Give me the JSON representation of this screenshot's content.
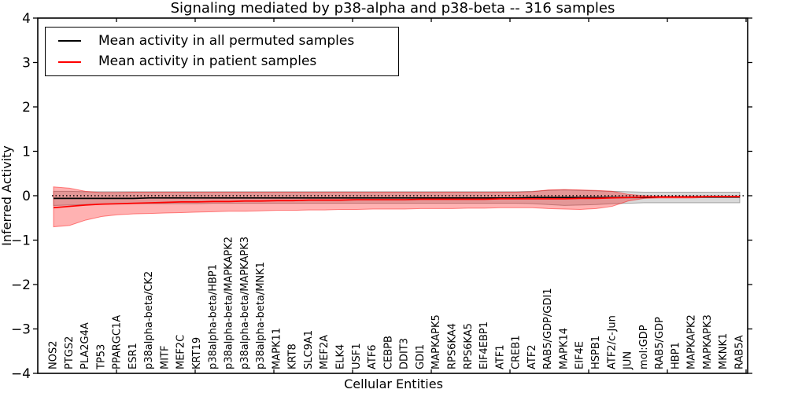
{
  "chart_data": {
    "type": "line",
    "title": "Signaling mediated by p38-alpha and p38-beta -- 316 samples",
    "xlabel": "Cellular Entities",
    "ylabel": "Inferred Activity",
    "ylim": [
      -4,
      4
    ],
    "yticks": [
      4,
      3,
      2,
      1,
      0,
      -1,
      -2,
      -3,
      -4
    ],
    "ytick_labels": [
      "4",
      "3",
      "2",
      "1",
      "0",
      "−1",
      "−2",
      "−3",
      "−4"
    ],
    "grid": false,
    "legend_position": "upper left",
    "zero_line": {
      "y": 0,
      "style": "dotted",
      "color": "#000000"
    },
    "categories": [
      "NOS2",
      "PTGS2",
      "PLA2G4A",
      "TP53",
      "PPARGC1A",
      "ESR1",
      "p38alpha-beta/CK2",
      "MITF",
      "MEF2C",
      "KRT19",
      "p38alpha-beta/HBP1",
      "p38alpha-beta/MAPKAPK2",
      "p38alpha-beta/MAPKAPK3",
      "p38alpha-beta/MNK1",
      "MAPK11",
      "KRT8",
      "SLC9A1",
      "MEF2A",
      "ELK4",
      "USF1",
      "ATF6",
      "CEBPB",
      "DDIT3",
      "GDI1",
      "MAPKAPK5",
      "RPS6KA4",
      "RPS6KA5",
      "EIF4EBP1",
      "ATF1",
      "CREB1",
      "ATF2",
      "RAB5/GDP/GDI1",
      "MAPK14",
      "EIF4E",
      "HSPB1",
      "ATF2/c-Jun",
      "JUN",
      "mol:GDP",
      "RAB5/GDP",
      "HBP1",
      "MAPKAPK2",
      "MAPKAPK3",
      "MKNK1",
      "RAB5A"
    ],
    "series": [
      {
        "name": "Mean activity in all permuted samples",
        "color": "#000000",
        "values": [
          -0.06,
          -0.06,
          -0.06,
          -0.06,
          -0.06,
          -0.06,
          -0.05,
          -0.05,
          -0.05,
          -0.05,
          -0.05,
          -0.05,
          -0.05,
          -0.05,
          -0.05,
          -0.05,
          -0.05,
          -0.05,
          -0.05,
          -0.05,
          -0.05,
          -0.05,
          -0.05,
          -0.05,
          -0.05,
          -0.05,
          -0.05,
          -0.05,
          -0.05,
          -0.05,
          -0.04,
          -0.04,
          -0.04,
          -0.04,
          -0.04,
          -0.04,
          -0.04,
          -0.04,
          -0.03,
          -0.03,
          -0.03,
          -0.03,
          -0.03,
          -0.03
        ]
      },
      {
        "name": "Mean activity in patient samples",
        "color": "#ff0000",
        "values": [
          -0.27,
          -0.24,
          -0.21,
          -0.19,
          -0.18,
          -0.17,
          -0.16,
          -0.15,
          -0.14,
          -0.14,
          -0.13,
          -0.13,
          -0.12,
          -0.12,
          -0.11,
          -0.11,
          -0.1,
          -0.1,
          -0.1,
          -0.09,
          -0.09,
          -0.09,
          -0.09,
          -0.08,
          -0.08,
          -0.08,
          -0.08,
          -0.08,
          -0.07,
          -0.07,
          -0.07,
          -0.07,
          -0.07,
          -0.06,
          -0.06,
          -0.05,
          -0.04,
          -0.03,
          -0.03,
          -0.03,
          -0.03,
          -0.02,
          -0.02,
          -0.02
        ]
      }
    ],
    "bands": [
      {
        "name": "permuted samples spread",
        "color": "#000000",
        "opacity": 0.15,
        "upper": [
          0.1,
          0.1,
          0.09,
          0.09,
          0.09,
          0.09,
          0.09,
          0.09,
          0.09,
          0.09,
          0.09,
          0.09,
          0.09,
          0.09,
          0.09,
          0.09,
          0.09,
          0.09,
          0.09,
          0.09,
          0.09,
          0.09,
          0.09,
          0.09,
          0.09,
          0.09,
          0.09,
          0.09,
          0.09,
          0.09,
          0.1,
          0.12,
          0.13,
          0.12,
          0.11,
          0.1,
          0.09,
          0.08,
          0.08,
          0.08,
          0.08,
          0.08,
          0.08,
          0.08
        ],
        "lower": [
          -0.22,
          -0.21,
          -0.2,
          -0.19,
          -0.19,
          -0.18,
          -0.18,
          -0.18,
          -0.18,
          -0.18,
          -0.17,
          -0.17,
          -0.17,
          -0.17,
          -0.17,
          -0.17,
          -0.17,
          -0.17,
          -0.17,
          -0.17,
          -0.17,
          -0.17,
          -0.17,
          -0.17,
          -0.17,
          -0.17,
          -0.17,
          -0.17,
          -0.17,
          -0.17,
          -0.18,
          -0.2,
          -0.22,
          -0.21,
          -0.2,
          -0.18,
          -0.17,
          -0.16,
          -0.16,
          -0.16,
          -0.16,
          -0.16,
          -0.16,
          -0.16
        ]
      },
      {
        "name": "patient samples spread",
        "color": "#ff0000",
        "opacity": 0.3,
        "upper": [
          0.2,
          0.17,
          0.1,
          0.07,
          0.07,
          0.08,
          0.08,
          0.08,
          0.08,
          0.08,
          0.08,
          0.08,
          0.08,
          0.08,
          0.08,
          0.08,
          0.08,
          0.08,
          0.08,
          0.08,
          0.08,
          0.08,
          0.08,
          0.08,
          0.08,
          0.08,
          0.08,
          0.08,
          0.08,
          0.08,
          0.09,
          0.13,
          0.14,
          0.13,
          0.12,
          0.1,
          0.03,
          0.0,
          -0.01,
          -0.01,
          -0.01,
          -0.01,
          -0.01,
          -0.01
        ],
        "lower": [
          -0.7,
          -0.67,
          -0.55,
          -0.47,
          -0.43,
          -0.41,
          -0.4,
          -0.39,
          -0.38,
          -0.37,
          -0.36,
          -0.35,
          -0.35,
          -0.34,
          -0.33,
          -0.33,
          -0.32,
          -0.32,
          -0.31,
          -0.31,
          -0.3,
          -0.3,
          -0.3,
          -0.29,
          -0.29,
          -0.29,
          -0.28,
          -0.28,
          -0.27,
          -0.27,
          -0.27,
          -0.29,
          -0.3,
          -0.31,
          -0.29,
          -0.24,
          -0.12,
          -0.06,
          -0.05,
          -0.05,
          -0.05,
          -0.04,
          -0.04,
          -0.04
        ]
      }
    ]
  }
}
